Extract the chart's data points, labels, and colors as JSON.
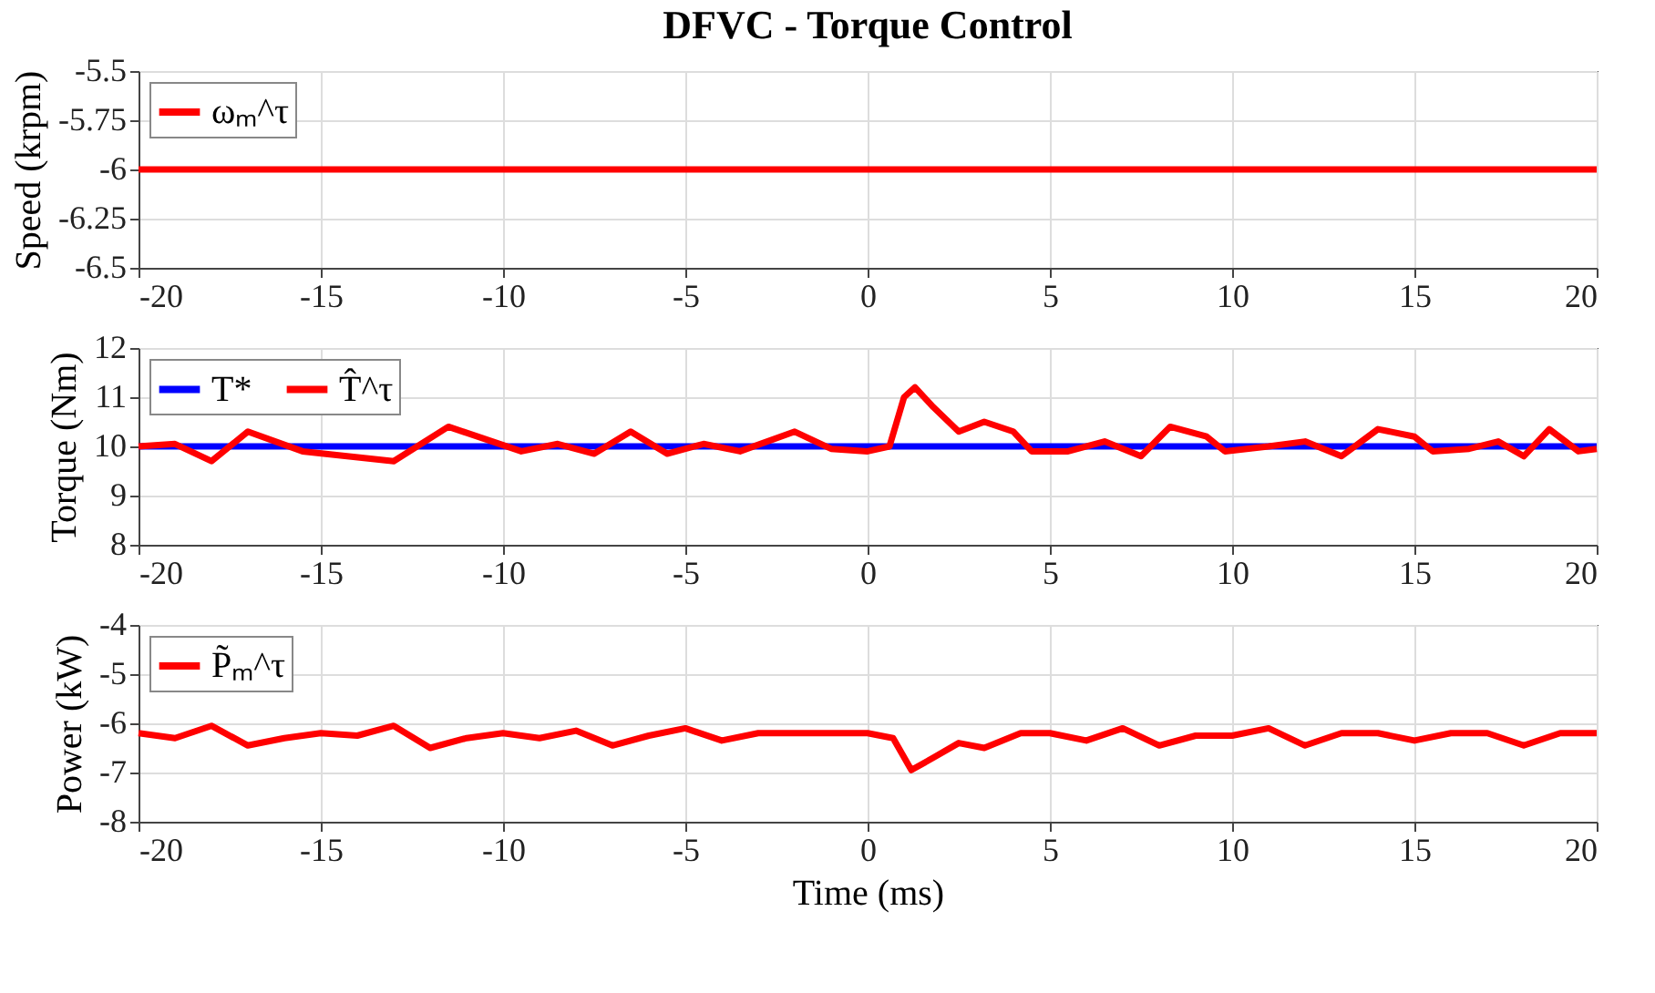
{
  "chart_data": [
    {
      "type": "line",
      "title": "DFVC - Torque Control",
      "ylabel": "Speed (krpm)",
      "xlim": [
        -20,
        20
      ],
      "xticks": [
        -20,
        -15,
        -10,
        -5,
        0,
        5,
        10,
        15,
        20
      ],
      "ylim": [
        -6.5,
        -5.5
      ],
      "yticks": [
        -6.5,
        -6.25,
        -6,
        -5.75,
        -5.5
      ],
      "grid": true,
      "legend": "top left",
      "series": [
        {
          "name": "ωₘ^τ",
          "color": "#ff0000",
          "x": [
            -20,
            -10,
            0,
            10,
            20
          ],
          "values": [
            -6,
            -6,
            -6,
            -6,
            -6
          ]
        }
      ]
    },
    {
      "type": "line",
      "ylabel": "Torque (Nm)",
      "xlim": [
        -20,
        20
      ],
      "xticks": [
        -20,
        -15,
        -10,
        -5,
        0,
        5,
        10,
        15,
        20
      ],
      "ylim": [
        8,
        12
      ],
      "yticks": [
        8,
        9,
        10,
        11,
        12
      ],
      "grid": true,
      "legend": "top left",
      "series": [
        {
          "name": "T*",
          "color": "#0000ff",
          "x": [
            -20,
            20
          ],
          "values": [
            10,
            10
          ]
        },
        {
          "name": "T̂^τ",
          "color": "#ff0000",
          "x": [
            -20,
            -19,
            -18,
            -17,
            -15.5,
            -13,
            -11.5,
            -9.5,
            -8.5,
            -7.5,
            -6.5,
            -5.5,
            -4.5,
            -3.5,
            -2,
            -1,
            0,
            0.6,
            1,
            1.3,
            1.8,
            2.5,
            3.2,
            4,
            4.5,
            5.5,
            6.5,
            7.5,
            8.3,
            9.3,
            9.8,
            11,
            12,
            13,
            14,
            15,
            15.5,
            16.5,
            17.3,
            18,
            18.7,
            19.5,
            20
          ],
          "values": [
            10,
            10.05,
            9.7,
            10.3,
            9.9,
            9.7,
            10.4,
            9.9,
            10.05,
            9.85,
            10.3,
            9.85,
            10.05,
            9.9,
            10.3,
            9.95,
            9.9,
            10,
            11.0,
            11.2,
            10.8,
            10.3,
            10.5,
            10.3,
            9.9,
            9.9,
            10.1,
            9.8,
            10.4,
            10.2,
            9.9,
            10,
            10.1,
            9.8,
            10.35,
            10.2,
            9.9,
            9.95,
            10.1,
            9.8,
            10.35,
            9.9,
            9.95
          ]
        }
      ]
    },
    {
      "type": "line",
      "ylabel": "Power (kW)",
      "xlabel": "Time (ms)",
      "xlim": [
        -20,
        20
      ],
      "xticks": [
        -20,
        -15,
        -10,
        -5,
        0,
        5,
        10,
        15,
        20
      ],
      "ylim": [
        -8,
        -4
      ],
      "yticks": [
        -8,
        -7,
        -6,
        -5,
        -4
      ],
      "grid": true,
      "legend": "top left",
      "series": [
        {
          "name": "P̃ₘ^τ",
          "color": "#ff0000",
          "x": [
            -20,
            -19,
            -18,
            -17,
            -16,
            -15,
            -14,
            -13,
            -12,
            -11,
            -10,
            -9,
            -8,
            -7,
            -6,
            -5,
            -4,
            -3,
            -2,
            -1,
            0,
            0.7,
            1.2,
            1.8,
            2.5,
            3.2,
            4.2,
            5,
            6,
            7,
            8,
            9,
            10,
            11,
            12,
            13,
            14,
            15,
            16,
            17,
            18,
            19,
            20
          ],
          "values": [
            -6.2,
            -6.3,
            -6.05,
            -6.45,
            -6.3,
            -6.2,
            -6.25,
            -6.05,
            -6.5,
            -6.3,
            -6.2,
            -6.3,
            -6.15,
            -6.45,
            -6.25,
            -6.1,
            -6.35,
            -6.2,
            -6.2,
            -6.2,
            -6.2,
            -6.3,
            -6.95,
            -6.7,
            -6.4,
            -6.5,
            -6.2,
            -6.2,
            -6.35,
            -6.1,
            -6.45,
            -6.25,
            -6.25,
            -6.1,
            -6.45,
            -6.2,
            -6.2,
            -6.35,
            -6.2,
            -6.2,
            -6.45,
            -6.2,
            -6.2
          ]
        }
      ]
    }
  ]
}
